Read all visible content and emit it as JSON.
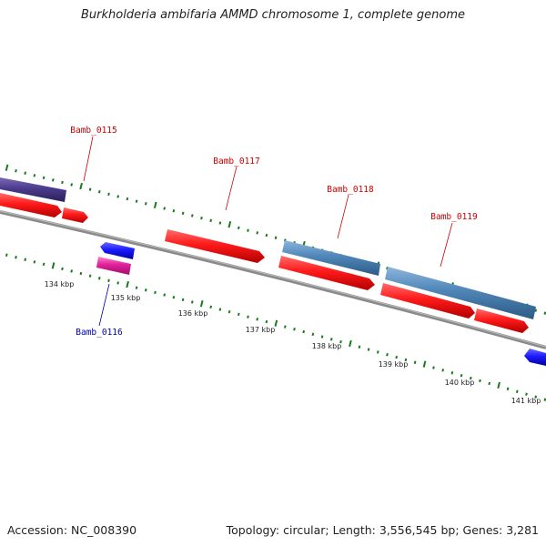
{
  "title": "Burkholderia ambifaria AMMD chromosome 1, complete genome",
  "footer": {
    "accession": "Accession: NC_008390",
    "summary": "Topology: circular; Length: 3,556,545 bp; Genes: 3,281"
  },
  "colors": {
    "backbone": "#777777",
    "tick": "#1a7a1a",
    "forward_cds": "#ff1a1a",
    "forward_gene": "#4f86b8",
    "forward_other": "#4b3b8c",
    "reverse_cds": "#1a1aff",
    "reverse_other": "#e0209a",
    "label_forward": "#cc0000",
    "label_reverse": "#0000aa"
  },
  "ticks": [
    {
      "label": "134 kbp"
    },
    {
      "label": "135 kbp"
    },
    {
      "label": "136 kbp"
    },
    {
      "label": "137 kbp"
    },
    {
      "label": "138 kbp"
    },
    {
      "label": "139 kbp"
    },
    {
      "label": "140 kbp"
    },
    {
      "label": "141 kbp"
    }
  ],
  "gene_labels": [
    {
      "text": "Bamb_0115",
      "strand": "forward"
    },
    {
      "text": "Bamb_0117",
      "strand": "forward"
    },
    {
      "text": "Bamb_0118",
      "strand": "forward"
    },
    {
      "text": "Bamb_0119",
      "strand": "forward"
    },
    {
      "text": "Bamb_0116",
      "strand": "reverse"
    }
  ]
}
